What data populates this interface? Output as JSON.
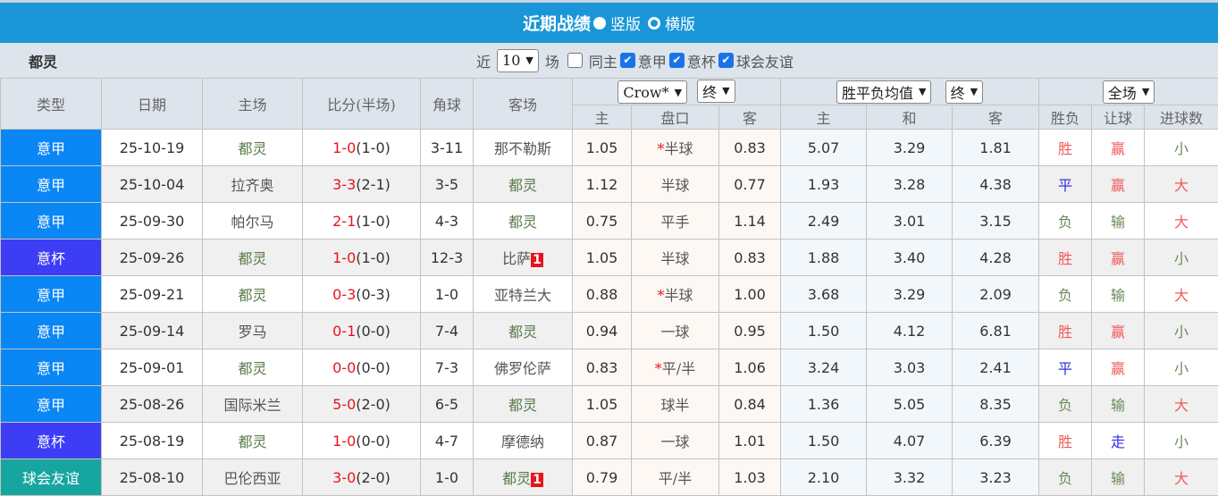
{
  "title": {
    "text": "近期战绩",
    "opt1": "竖版",
    "opt2": "横版",
    "selected": "竖版"
  },
  "filter": {
    "team": "都灵",
    "near": "近",
    "count": "10",
    "unit": "场",
    "same_home": "同主",
    "same_home_checked": false,
    "leagues": [
      {
        "label": "意甲",
        "checked": true
      },
      {
        "label": "意杯",
        "checked": true
      },
      {
        "label": "球会友谊",
        "checked": true
      }
    ]
  },
  "header": {
    "type": "类型",
    "date": "日期",
    "home": "主场",
    "score": "比分(半场)",
    "corner": "角球",
    "away": "客场",
    "company": "Crow*",
    "ah_stage": "终",
    "eu_type": "胜平负均值",
    "eu_stage": "终",
    "period": "全场",
    "ah_cols": [
      "主",
      "盘口",
      "客"
    ],
    "eu_cols": [
      "主",
      "和",
      "客"
    ],
    "res_cols": [
      "胜负",
      "让球",
      "进球数"
    ]
  },
  "colors": {
    "意甲": "#0a86f5",
    "意杯": "#3d3df5",
    "球会友谊": "#17a69f",
    "team": "#5a7a4a",
    "red": "#e8131c",
    "blue": "#3030e0",
    "win": "#f05a5a",
    "lose": "#6a8a5a"
  },
  "rows": [
    {
      "type": "意甲",
      "date": "25-10-19",
      "home": "都灵",
      "score": "1-0",
      "half": "(1-0)",
      "corner": "3-11",
      "away": "那不勒斯",
      "ah": [
        "1.05",
        "*半球",
        "0.83"
      ],
      "eu": [
        "5.07",
        "3.29",
        "1.81"
      ],
      "res": [
        "胜",
        "赢",
        "小"
      ]
    },
    {
      "type": "意甲",
      "date": "25-10-04",
      "home": "拉齐奥",
      "score": "3-3",
      "half": "(2-1)",
      "corner": "3-5",
      "away": "都灵",
      "ah": [
        "1.12",
        "半球",
        "0.77"
      ],
      "eu": [
        "1.93",
        "3.28",
        "4.38"
      ],
      "res": [
        "平",
        "赢",
        "大"
      ]
    },
    {
      "type": "意甲",
      "date": "25-09-30",
      "home": "帕尔马",
      "score": "2-1",
      "half": "(1-0)",
      "corner": "4-3",
      "away": "都灵",
      "ah": [
        "0.75",
        "平手",
        "1.14"
      ],
      "eu": [
        "2.49",
        "3.01",
        "3.15"
      ],
      "res": [
        "负",
        "输",
        "大"
      ]
    },
    {
      "type": "意杯",
      "date": "25-09-26",
      "home": "都灵",
      "score": "1-0",
      "half": "(1-0)",
      "corner": "12-3",
      "away": "比萨",
      "away_card": "1",
      "ah": [
        "1.05",
        "半球",
        "0.83"
      ],
      "eu": [
        "1.88",
        "3.40",
        "4.28"
      ],
      "res": [
        "胜",
        "赢",
        "小"
      ]
    },
    {
      "type": "意甲",
      "date": "25-09-21",
      "home": "都灵",
      "score": "0-3",
      "half": "(0-3)",
      "corner": "1-0",
      "away": "亚特兰大",
      "ah": [
        "0.88",
        "*半球",
        "1.00"
      ],
      "eu": [
        "3.68",
        "3.29",
        "2.09"
      ],
      "res": [
        "负",
        "输",
        "大"
      ]
    },
    {
      "type": "意甲",
      "date": "25-09-14",
      "home": "罗马",
      "score": "0-1",
      "half": "(0-0)",
      "corner": "7-4",
      "away": "都灵",
      "ah": [
        "0.94",
        "一球",
        "0.95"
      ],
      "eu": [
        "1.50",
        "4.12",
        "6.81"
      ],
      "res": [
        "胜",
        "赢",
        "小"
      ]
    },
    {
      "type": "意甲",
      "date": "25-09-01",
      "home": "都灵",
      "score": "0-0",
      "half": "(0-0)",
      "corner": "7-3",
      "away": "佛罗伦萨",
      "ah": [
        "0.83",
        "*平/半",
        "1.06"
      ],
      "eu": [
        "3.24",
        "3.03",
        "2.41"
      ],
      "res": [
        "平",
        "赢",
        "小"
      ]
    },
    {
      "type": "意甲",
      "date": "25-08-26",
      "home": "国际米兰",
      "score": "5-0",
      "half": "(2-0)",
      "corner": "6-5",
      "away": "都灵",
      "ah": [
        "1.05",
        "球半",
        "0.84"
      ],
      "eu": [
        "1.36",
        "5.05",
        "8.35"
      ],
      "res": [
        "负",
        "输",
        "大"
      ]
    },
    {
      "type": "意杯",
      "date": "25-08-19",
      "home": "都灵",
      "score": "1-0",
      "half": "(0-0)",
      "corner": "4-7",
      "away": "摩德纳",
      "ah": [
        "0.87",
        "一球",
        "1.01"
      ],
      "eu": [
        "1.50",
        "4.07",
        "6.39"
      ],
      "res": [
        "胜",
        "走",
        "小"
      ]
    },
    {
      "type": "球会友谊",
      "date": "25-08-10",
      "home": "巴伦西亚",
      "score": "3-0",
      "half": "(2-0)",
      "corner": "1-0",
      "away": "都灵",
      "away_card": "1",
      "ah": [
        "0.79",
        "平/半",
        "1.03"
      ],
      "eu": [
        "2.10",
        "3.32",
        "3.23"
      ],
      "res": [
        "负",
        "输",
        "大"
      ]
    }
  ]
}
